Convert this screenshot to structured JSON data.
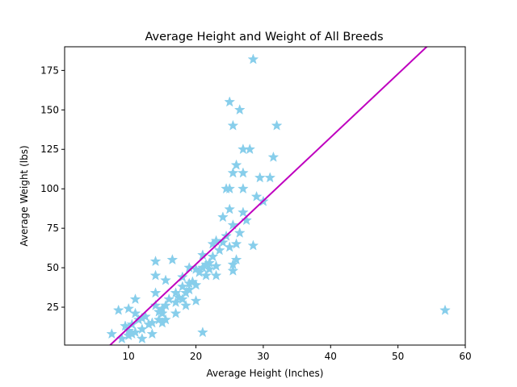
{
  "chart_data": {
    "type": "scatter",
    "title": "Average Height and Weight of All Breeds",
    "xlabel": "Average Height (Inches)",
    "ylabel": "Average Weight (lbs)",
    "xlim": [
      0.5,
      60
    ],
    "ylim": [
      1,
      190
    ],
    "xticks": [
      10,
      20,
      30,
      40,
      50,
      60
    ],
    "yticks": [
      25,
      50,
      75,
      100,
      125,
      150,
      175
    ],
    "grid": false,
    "legend": "none",
    "marker": "star",
    "colors": {
      "points": "#87ceeb",
      "trendline": "#bf00bf"
    },
    "trendline": {
      "slope": 4.02,
      "intercept": -28.2
    },
    "points": [
      [
        7.5,
        8
      ],
      [
        8.5,
        23
      ],
      [
        9,
        5
      ],
      [
        9.5,
        13
      ],
      [
        10,
        7
      ],
      [
        10,
        10
      ],
      [
        10,
        24
      ],
      [
        10.5,
        8
      ],
      [
        10.5,
        14
      ],
      [
        11,
        9
      ],
      [
        11,
        21
      ],
      [
        11,
        30
      ],
      [
        11.5,
        17
      ],
      [
        12,
        5
      ],
      [
        12,
        18
      ],
      [
        12,
        11
      ],
      [
        12.5,
        19
      ],
      [
        13,
        14
      ],
      [
        13.5,
        8
      ],
      [
        13.5,
        15
      ],
      [
        14,
        54
      ],
      [
        14,
        45
      ],
      [
        14,
        34
      ],
      [
        14,
        26
      ],
      [
        14.5,
        17
      ],
      [
        14.5,
        22
      ],
      [
        15,
        24
      ],
      [
        15,
        21
      ],
      [
        15,
        15
      ],
      [
        15.5,
        42
      ],
      [
        15.5,
        26
      ],
      [
        15.5,
        17
      ],
      [
        16,
        30
      ],
      [
        16.5,
        55
      ],
      [
        17,
        34
      ],
      [
        17,
        28
      ],
      [
        17,
        21
      ],
      [
        17.5,
        31
      ],
      [
        18,
        44
      ],
      [
        18,
        38
      ],
      [
        18,
        30
      ],
      [
        18.5,
        34
      ],
      [
        18.5,
        26
      ],
      [
        19,
        40
      ],
      [
        19,
        36
      ],
      [
        19,
        50
      ],
      [
        19.5,
        41
      ],
      [
        20,
        39
      ],
      [
        20,
        29
      ],
      [
        20,
        49
      ],
      [
        20.5,
        47
      ],
      [
        21,
        50
      ],
      [
        21,
        9
      ],
      [
        21,
        58
      ],
      [
        21.5,
        52
      ],
      [
        21.5,
        45
      ],
      [
        22,
        53
      ],
      [
        22,
        49
      ],
      [
        22.5,
        65
      ],
      [
        22.5,
        57
      ],
      [
        23,
        67
      ],
      [
        23,
        51
      ],
      [
        23,
        45
      ],
      [
        23.5,
        61
      ],
      [
        24,
        66
      ],
      [
        24,
        82
      ],
      [
        24.5,
        100
      ],
      [
        24.5,
        70
      ],
      [
        25,
        100
      ],
      [
        25,
        155
      ],
      [
        25,
        63
      ],
      [
        25,
        87
      ],
      [
        25.5,
        140
      ],
      [
        25.5,
        77
      ],
      [
        25.5,
        110
      ],
      [
        25.5,
        52
      ],
      [
        25.5,
        48
      ],
      [
        26,
        115
      ],
      [
        26,
        65
      ],
      [
        26,
        55
      ],
      [
        26.5,
        150
      ],
      [
        26.5,
        72
      ],
      [
        27,
        125
      ],
      [
        27,
        100
      ],
      [
        27,
        85
      ],
      [
        27,
        110
      ],
      [
        27.5,
        80
      ],
      [
        28,
        125
      ],
      [
        28.5,
        182
      ],
      [
        28.5,
        64
      ],
      [
        29,
        95
      ],
      [
        29.5,
        107
      ],
      [
        30,
        92
      ],
      [
        31,
        107
      ],
      [
        31.5,
        120
      ],
      [
        32,
        140
      ],
      [
        57,
        23
      ]
    ]
  }
}
